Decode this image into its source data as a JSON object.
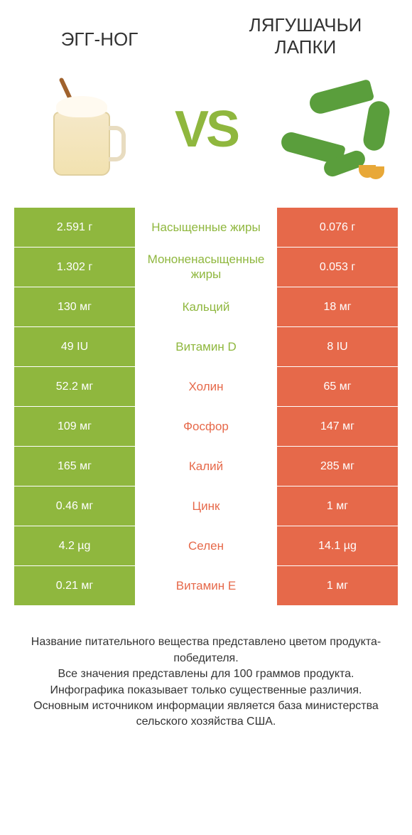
{
  "colors": {
    "green": "#8fb73e",
    "orange": "#e6694a",
    "text": "#333333",
    "background": "#ffffff"
  },
  "header": {
    "left_title": "ЭГГ-НОГ",
    "right_title": "ЛЯГУШАЧЬИ ЛАПКИ",
    "vs": "VS"
  },
  "table": {
    "type": "comparison-table",
    "columns": [
      "left_value",
      "nutrient",
      "right_value"
    ],
    "left_bg": "#8fb73e",
    "right_bg": "#e6694a",
    "rows": [
      {
        "left": "2.591 г",
        "label": "Насыщенные жиры",
        "right": "0.076 г",
        "winner": "left"
      },
      {
        "left": "1.302 г",
        "label": "Мононенасыщенные жиры",
        "right": "0.053 г",
        "winner": "left"
      },
      {
        "left": "130 мг",
        "label": "Кальций",
        "right": "18 мг",
        "winner": "left"
      },
      {
        "left": "49 IU",
        "label": "Витамин D",
        "right": "8 IU",
        "winner": "left"
      },
      {
        "left": "52.2 мг",
        "label": "Холин",
        "right": "65 мг",
        "winner": "right"
      },
      {
        "left": "109 мг",
        "label": "Фосфор",
        "right": "147 мг",
        "winner": "right"
      },
      {
        "left": "165 мг",
        "label": "Калий",
        "right": "285 мг",
        "winner": "right"
      },
      {
        "left": "0.46 мг",
        "label": "Цинк",
        "right": "1 мг",
        "winner": "right"
      },
      {
        "left": "4.2 µg",
        "label": "Селен",
        "right": "14.1 µg",
        "winner": "right"
      },
      {
        "left": "0.21 мг",
        "label": "Витамин E",
        "right": "1 мг",
        "winner": "right"
      }
    ]
  },
  "footer": {
    "line1": "Название питательного вещества представлено цветом продукта-победителя.",
    "line2": "Все значения представлены для 100 граммов продукта.",
    "line3": "Инфографика показывает только существенные различия.",
    "line4": "Основным источником информации является база министерства сельского хозяйства США."
  }
}
